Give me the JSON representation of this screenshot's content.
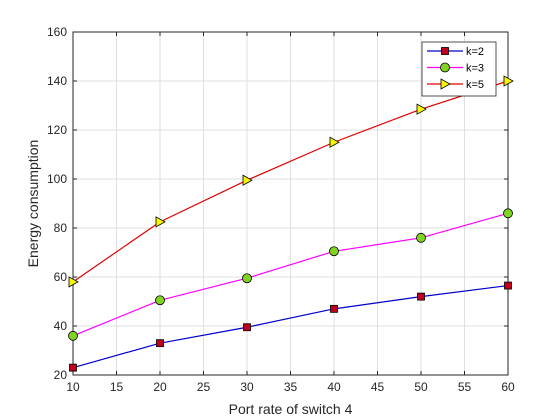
{
  "chart_data": {
    "type": "line",
    "xlabel": "Port rate of switch 4",
    "ylabel": "Energy consumption",
    "xlim": [
      10,
      60
    ],
    "ylim": [
      20,
      160
    ],
    "xticks": [
      10,
      15,
      20,
      25,
      30,
      35,
      40,
      45,
      50,
      55,
      60
    ],
    "yticks": [
      20,
      40,
      60,
      80,
      100,
      120,
      140,
      160
    ],
    "grid": true,
    "legend_position": "top-right",
    "x": [
      10,
      20,
      30,
      40,
      50,
      60
    ],
    "series": [
      {
        "name": "k=2",
        "values": [
          23,
          33,
          39.5,
          47,
          52,
          56.5
        ],
        "color": "#0000cc",
        "marker": "square",
        "marker_fill": "#c0001a"
      },
      {
        "name": "k=3",
        "values": [
          36,
          50.5,
          59.5,
          70.5,
          76,
          86
        ],
        "color": "#ff00ff",
        "marker": "circle",
        "marker_fill": "#7fd321"
      },
      {
        "name": "k=5",
        "values": [
          58,
          82.5,
          99.5,
          115,
          128.5,
          140
        ],
        "color": "#e00000",
        "marker": "triangle-right",
        "marker_fill": "#f7f700"
      }
    ]
  }
}
